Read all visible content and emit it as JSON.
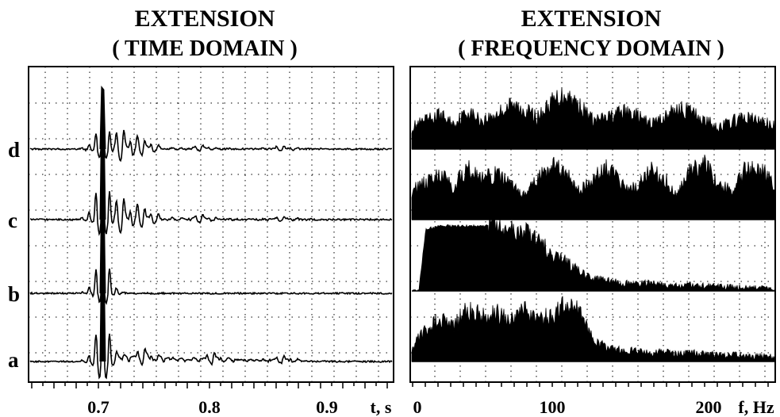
{
  "panels": {
    "time": {
      "title_line1": "EXTENSION",
      "title_line2": "( TIME DOMAIN )"
    },
    "freq": {
      "title_line1": "EXTENSION",
      "title_line2": "( FREQUENCY DOMAIN )"
    }
  },
  "trace_labels": [
    "d",
    "c",
    "b",
    "a"
  ],
  "colors": {
    "trace": "#000000",
    "grid": "#000000",
    "background": "#ffffff"
  },
  "chart_data": [
    {
      "type": "line",
      "panel": "time",
      "title": "EXTENSION ( TIME DOMAIN )",
      "xlabel": "t, s",
      "x_tick_labels": [
        "0.7",
        "0.8",
        "0.9"
      ],
      "x_unit_label": "t, s",
      "xlim": [
        0.64,
        0.955
      ],
      "grid": true,
      "series": [
        {
          "name": "d",
          "events": [
            {
              "t": 0.704,
              "peak": 1.0,
              "depth": 0.25
            },
            {
              "t": 0.722,
              "peak": 0.35,
              "depth": 0.35
            },
            {
              "t": 0.74,
              "peak": 0.15,
              "depth": 0.15
            },
            {
              "t": 0.79,
              "peak": 0.08,
              "depth": 0.08
            },
            {
              "t": 0.86,
              "peak": 0.06,
              "depth": 0.06
            }
          ]
        },
        {
          "name": "c",
          "events": [
            {
              "t": 0.704,
              "peak": 1.0,
              "depth": 0.25
            },
            {
              "t": 0.722,
              "peak": 0.35,
              "depth": 0.35
            },
            {
              "t": 0.74,
              "peak": 0.2,
              "depth": 0.2
            },
            {
              "t": 0.79,
              "peak": 0.1,
              "depth": 0.12
            },
            {
              "t": 0.86,
              "peak": 0.06,
              "depth": 0.06
            }
          ]
        },
        {
          "name": "b",
          "events": [
            {
              "t": 0.704,
              "peak": 1.0,
              "depth": 0.2
            },
            {
              "t": 0.7,
              "peak": 0.05,
              "depth": 0.15
            }
          ]
        },
        {
          "name": "a",
          "events": [
            {
              "t": 0.704,
              "peak": 1.0,
              "depth": 0.3
            },
            {
              "t": 0.74,
              "peak": 0.2,
              "depth": 0.15
            },
            {
              "t": 0.8,
              "peak": 0.15,
              "depth": 0.1
            },
            {
              "t": 0.86,
              "peak": 0.1,
              "depth": 0.08
            }
          ]
        }
      ]
    },
    {
      "type": "area",
      "panel": "freq",
      "title": "EXTENSION ( FREQUENCY DOMAIN )",
      "xlabel": "f, Hz",
      "x_tick_labels": [
        "0",
        "100",
        "200"
      ],
      "x_unit_label": "f, Hz",
      "xlim": [
        0,
        260
      ],
      "grid": true,
      "series": [
        {
          "name": "d",
          "x": [
            0,
            10,
            20,
            30,
            40,
            50,
            60,
            70,
            80,
            90,
            100,
            110,
            120,
            130,
            140,
            150,
            160,
            170,
            180,
            190,
            200,
            210,
            220,
            230,
            240,
            250,
            260
          ],
          "y": [
            0.35,
            0.45,
            0.55,
            0.4,
            0.6,
            0.45,
            0.55,
            0.7,
            0.65,
            0.5,
            0.75,
            0.9,
            0.7,
            0.45,
            0.5,
            0.6,
            0.55,
            0.4,
            0.5,
            0.65,
            0.6,
            0.45,
            0.35,
            0.45,
            0.5,
            0.45,
            0.35
          ]
        },
        {
          "name": "c",
          "x": [
            0,
            10,
            20,
            30,
            40,
            50,
            60,
            70,
            80,
            90,
            100,
            110,
            120,
            130,
            140,
            150,
            160,
            170,
            180,
            190,
            200,
            210,
            220,
            230,
            240,
            250,
            260
          ],
          "y": [
            0.45,
            0.55,
            0.7,
            0.5,
            0.8,
            0.6,
            0.7,
            0.55,
            0.35,
            0.6,
            0.85,
            0.7,
            0.4,
            0.65,
            0.8,
            0.55,
            0.45,
            0.75,
            0.65,
            0.4,
            0.8,
            0.85,
            0.5,
            0.45,
            0.8,
            0.75,
            0.5
          ]
        },
        {
          "name": "b",
          "x": [
            0,
            5,
            10,
            20,
            30,
            40,
            50,
            60,
            70,
            80,
            90,
            100,
            110,
            120,
            130,
            140,
            150,
            160,
            170,
            180,
            190,
            200,
            210,
            220,
            230,
            240,
            250,
            260
          ],
          "y": [
            0.0,
            0.0,
            0.95,
            1.0,
            1.0,
            1.0,
            1.0,
            1.0,
            0.95,
            0.9,
            0.75,
            0.6,
            0.45,
            0.3,
            0.2,
            0.15,
            0.12,
            0.1,
            0.12,
            0.1,
            0.08,
            0.1,
            0.08,
            0.07,
            0.06,
            0.05,
            0.04,
            0.02
          ]
        },
        {
          "name": "a",
          "x": [
            0,
            10,
            20,
            30,
            40,
            50,
            60,
            70,
            80,
            90,
            100,
            110,
            120,
            130,
            140,
            150,
            160,
            170,
            180,
            190,
            200,
            210,
            220,
            230,
            240,
            250,
            260
          ],
          "y": [
            0.2,
            0.45,
            0.6,
            0.5,
            0.75,
            0.65,
            0.7,
            0.55,
            0.75,
            0.6,
            0.65,
            0.8,
            0.7,
            0.3,
            0.2,
            0.15,
            0.15,
            0.12,
            0.14,
            0.1,
            0.12,
            0.1,
            0.09,
            0.1,
            0.08,
            0.07,
            0.06
          ]
        }
      ]
    }
  ]
}
